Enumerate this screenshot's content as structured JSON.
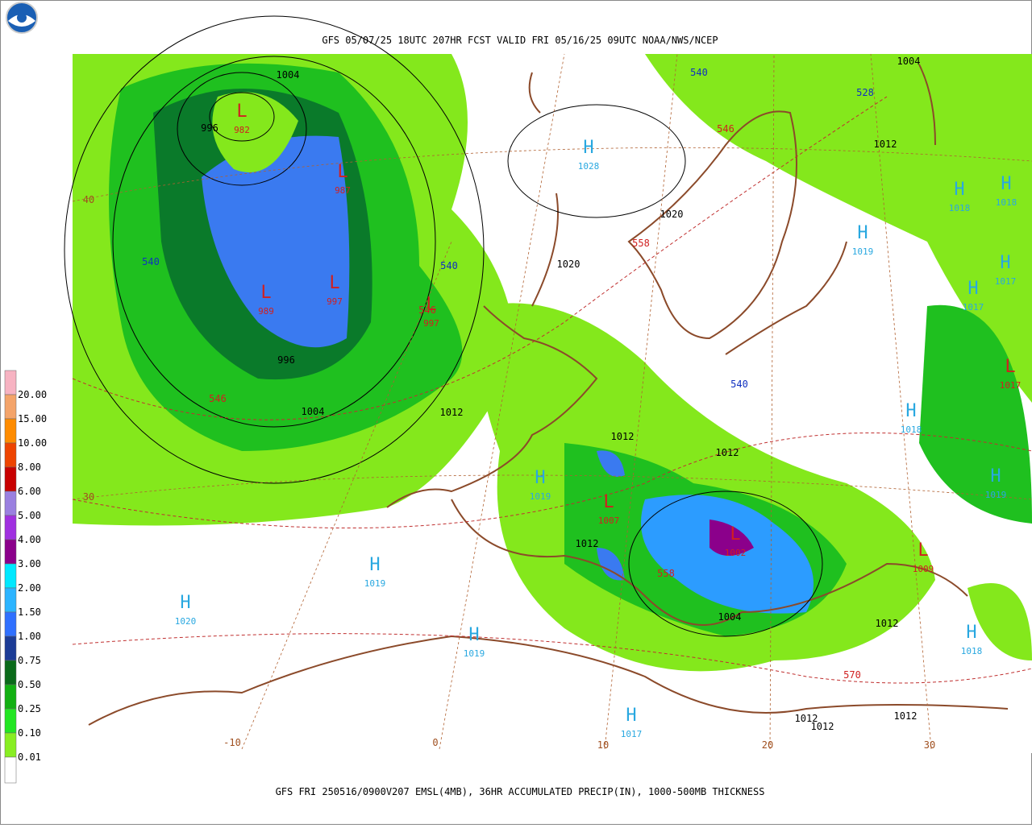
{
  "header": {
    "title": "GFS 05/07/25 18UTC 207HR FCST VALID FRI 05/16/25 09UTC NOAA/NWS/NCEP"
  },
  "footer": {
    "caption": "GFS FRI 250516/0900V207 EMSL(4MB), 36HR ACCUMULATED PRECIP(IN), 1000-500MB THICKNESS"
  },
  "legend": {
    "entries": [
      {
        "label": "20.00",
        "color": "#f7b3c2"
      },
      {
        "label": "15.00",
        "color": "#f4a46a"
      },
      {
        "label": "10.00",
        "color": "#ff8c00"
      },
      {
        "label": "8.00",
        "color": "#ee4400"
      },
      {
        "label": "6.00",
        "color": "#c80000"
      },
      {
        "label": "5.00",
        "color": "#9a80e0"
      },
      {
        "label": "4.00",
        "color": "#a030e0"
      },
      {
        "label": "3.00",
        "color": "#8b008b"
      },
      {
        "label": "2.00",
        "color": "#00e8ff"
      },
      {
        "label": "1.50",
        "color": "#2cb4ff"
      },
      {
        "label": "1.00",
        "color": "#3070ff"
      },
      {
        "label": "0.75",
        "color": "#1c3c96"
      },
      {
        "label": "0.50",
        "color": "#0a6a1a"
      },
      {
        "label": "0.25",
        "color": "#12b012"
      },
      {
        "label": "0.10",
        "color": "#22e622"
      },
      {
        "label": "0.01",
        "color": "#88ee22"
      }
    ]
  },
  "centers": [
    {
      "symbol": "L",
      "pressure": "982"
    },
    {
      "symbol": "L",
      "pressure": "987"
    },
    {
      "symbol": "L",
      "pressure": "989"
    },
    {
      "symbol": "L",
      "pressure": "997"
    },
    {
      "symbol": "L",
      "pressure": "997"
    },
    {
      "symbol": "H",
      "pressure": "1028"
    },
    {
      "symbol": "H",
      "pressure": "1019"
    },
    {
      "symbol": "H",
      "pressure": "1018"
    },
    {
      "symbol": "H",
      "pressure": "1018"
    },
    {
      "symbol": "H",
      "pressure": "1017"
    },
    {
      "symbol": "H",
      "pressure": "1017"
    },
    {
      "symbol": "L",
      "pressure": "1017"
    },
    {
      "symbol": "H",
      "pressure": "1018"
    },
    {
      "symbol": "H",
      "pressure": "1019"
    },
    {
      "symbol": "H",
      "pressure": "1019"
    },
    {
      "symbol": "L",
      "pressure": "1007"
    },
    {
      "symbol": "L",
      "pressure": "1002"
    },
    {
      "symbol": "L",
      "pressure": "1009"
    },
    {
      "symbol": "H",
      "pressure": "1019"
    },
    {
      "symbol": "H",
      "pressure": "1020"
    },
    {
      "symbol": "H",
      "pressure": "1019"
    },
    {
      "symbol": "H",
      "pressure": "1017"
    },
    {
      "symbol": "H",
      "pressure": "1018"
    }
  ],
  "isobar_labels": [
    "1004",
    "996",
    "996",
    "1004",
    "1012",
    "1012",
    "1012",
    "1012",
    "1004",
    "1012",
    "1012",
    "1012",
    "1012",
    "1004",
    "1012",
    "1020",
    "1020"
  ],
  "thickness_labels": [
    "540",
    "528",
    "540",
    "540",
    "540",
    "546",
    "558",
    "546",
    "546",
    "558",
    "570"
  ],
  "grid_labels": [
    "40",
    "30",
    "-10",
    "0",
    "10",
    "20",
    "30"
  ]
}
